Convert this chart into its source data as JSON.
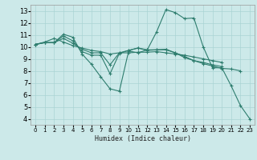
{
  "title": "",
  "xlabel": "Humidex (Indice chaleur)",
  "ylabel": "",
  "bg_color": "#cce9e9",
  "grid_color": "#aad4d4",
  "line_color": "#2e7d6e",
  "xlim": [
    -0.5,
    23.5
  ],
  "ylim": [
    3.5,
    13.5
  ],
  "xticks": [
    0,
    1,
    2,
    3,
    4,
    5,
    6,
    7,
    8,
    9,
    10,
    11,
    12,
    13,
    14,
    15,
    16,
    17,
    18,
    19,
    20,
    21,
    22,
    23
  ],
  "yticks": [
    4,
    5,
    6,
    7,
    8,
    9,
    10,
    11,
    12,
    13
  ],
  "series": [
    {
      "x": [
        0,
        1,
        2,
        3,
        4,
        5,
        6,
        7,
        8,
        9,
        10,
        11,
        12,
        13,
        14,
        15,
        16,
        17,
        18,
        19,
        20,
        21,
        22,
        23
      ],
      "y": [
        10.2,
        10.35,
        10.35,
        11.05,
        10.8,
        9.4,
        8.55,
        7.5,
        6.5,
        6.3,
        9.65,
        9.5,
        9.75,
        11.25,
        13.1,
        12.85,
        12.35,
        12.4,
        10.0,
        8.25,
        8.25,
        6.75,
        5.1,
        4.0
      ]
    },
    {
      "x": [
        0,
        1,
        2,
        3,
        4,
        5,
        6,
        7,
        8,
        9,
        10,
        11,
        12,
        13,
        14,
        15,
        16,
        17,
        18,
        19,
        20,
        21,
        22,
        23
      ],
      "y": [
        10.2,
        10.35,
        10.35,
        10.9,
        10.5,
        9.6,
        9.3,
        9.3,
        7.75,
        9.45,
        9.7,
        9.9,
        9.7,
        9.75,
        9.8,
        9.5,
        9.2,
        8.85,
        8.6,
        8.4,
        8.2,
        8.15,
        8.0,
        null
      ]
    },
    {
      "x": [
        0,
        1,
        2,
        3,
        4,
        5,
        6,
        7,
        8,
        9,
        10,
        11,
        12,
        13,
        14,
        15,
        16,
        17,
        18,
        19,
        20,
        21,
        22,
        23
      ],
      "y": [
        10.2,
        10.35,
        10.35,
        10.7,
        10.3,
        9.8,
        9.5,
        9.5,
        8.5,
        9.5,
        9.7,
        9.9,
        9.75,
        9.75,
        9.75,
        9.5,
        9.1,
        8.85,
        8.7,
        8.5,
        8.35,
        null,
        null,
        null
      ]
    },
    {
      "x": [
        0,
        1,
        2,
        3,
        4,
        5,
        6,
        7,
        8,
        9,
        10,
        11,
        12,
        13,
        14,
        15,
        16,
        17,
        18,
        19,
        20,
        21,
        22,
        23
      ],
      "y": [
        10.2,
        10.4,
        10.7,
        10.4,
        10.1,
        9.9,
        9.7,
        9.6,
        9.4,
        9.5,
        9.5,
        9.55,
        9.55,
        9.6,
        9.5,
        9.4,
        9.3,
        9.15,
        9.0,
        8.85,
        8.7,
        null,
        null,
        null
      ]
    }
  ]
}
